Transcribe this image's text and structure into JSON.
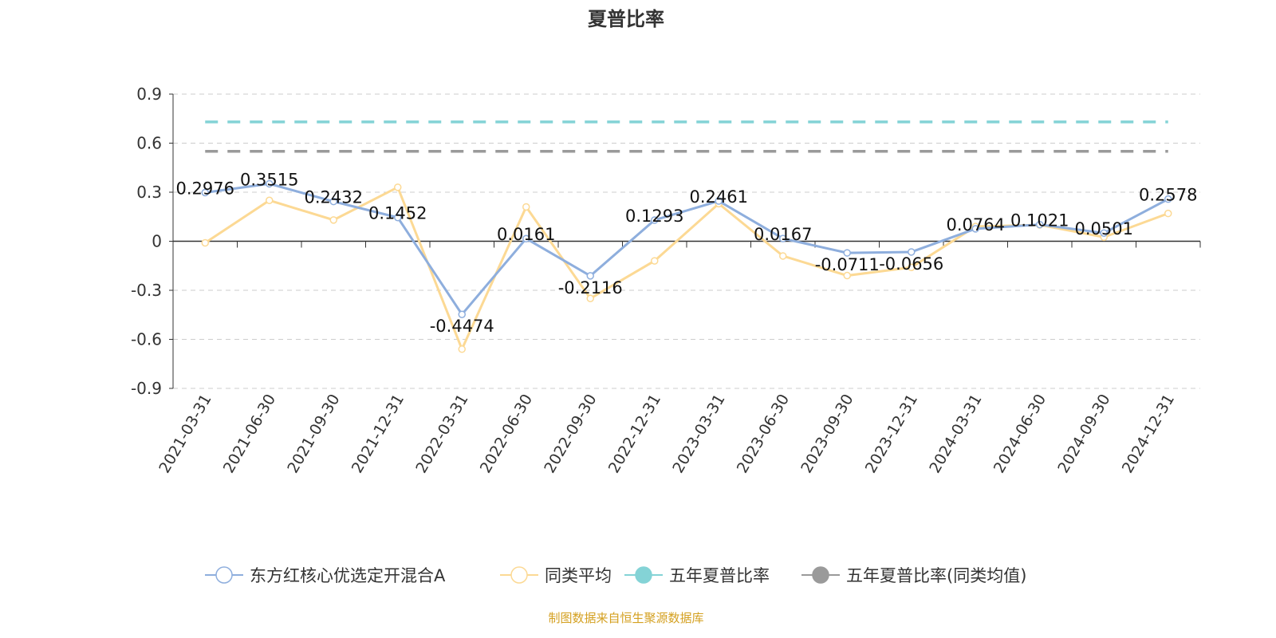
{
  "chart_data": {
    "type": "line",
    "title": "夏普比率",
    "categories": [
      "2021-03-31",
      "2021-06-30",
      "2021-09-30",
      "2021-12-31",
      "2022-03-31",
      "2022-06-30",
      "2022-09-30",
      "2022-12-31",
      "2023-03-31",
      "2023-06-30",
      "2023-09-30",
      "2023-12-31",
      "2024-03-31",
      "2024-06-30",
      "2024-09-30",
      "2024-12-31"
    ],
    "ylim": [
      -0.9,
      0.9
    ],
    "yticks": [
      "0.9",
      "0.6",
      "0.3",
      "0",
      "-0.3",
      "-0.6",
      "-0.9"
    ],
    "grid": true,
    "legend_placement": "bottom",
    "series": [
      {
        "name": "东方红核心优选定开混合A",
        "color": "#8eaedd",
        "values": [
          0.2976,
          0.3515,
          0.2432,
          0.1452,
          -0.4474,
          0.0161,
          -0.2116,
          0.1293,
          0.2461,
          0.0167,
          -0.0711,
          -0.0656,
          0.0764,
          0.1021,
          0.0501,
          0.2578
        ],
        "labels": [
          "0.2976",
          "0.3515",
          "0.2432",
          "0.1452",
          "-0.4474",
          "0.0161",
          "-0.2116",
          "0.1293",
          "0.2461",
          "0.0167",
          "-0.0711",
          "-0.0656",
          "0.0764",
          "0.1021",
          "0.0501",
          "0.2578"
        ]
      },
      {
        "name": "同类平均",
        "color": "#fcd994",
        "values": [
          -0.01,
          0.25,
          0.13,
          0.33,
          -0.66,
          0.21,
          -0.35,
          -0.12,
          0.23,
          -0.09,
          -0.21,
          -0.16,
          0.09,
          0.1,
          0.025,
          0.17
        ]
      },
      {
        "name": "五年夏普比率",
        "color": "#84d3d6",
        "value": 0.73
      },
      {
        "name": "五年夏普比率(同类均值)",
        "color": "#9a9a9a",
        "value": 0.55
      }
    ],
    "source": "制图数据来自恒生聚源数据库"
  }
}
